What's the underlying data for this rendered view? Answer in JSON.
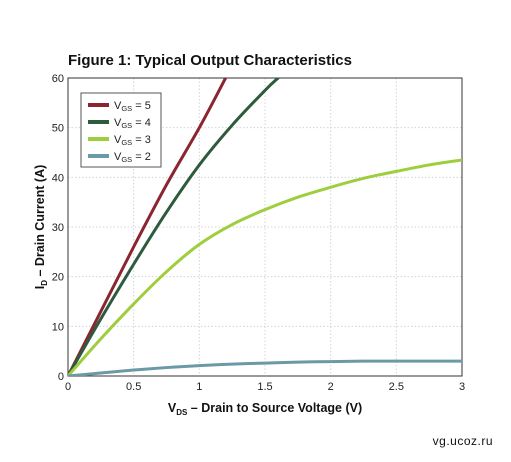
{
  "chart_data": {
    "type": "line",
    "title": "Figure 1: Typical Output Characteristics",
    "xlabel": {
      "main": "V",
      "sub": "DS",
      "rest": " – Drain to Source Voltage (V)"
    },
    "ylabel": {
      "main": "I",
      "sub": "D",
      "rest": " – Drain Current (A)"
    },
    "xlim": [
      0,
      3
    ],
    "ylim": [
      0,
      60
    ],
    "xticks": [
      "0",
      "0.5",
      "1",
      "1.5",
      "2",
      "2.5",
      "3"
    ],
    "yticks": [
      "0",
      "10",
      "20",
      "30",
      "40",
      "50",
      "60"
    ],
    "grid": true,
    "legend_position": "top-left",
    "series": [
      {
        "name": {
          "main": "V",
          "sub": "GS",
          "rest": " = 5"
        },
        "color": "#8b2530",
        "x": [
          0,
          0.25,
          0.5,
          0.75,
          1.0,
          1.2
        ],
        "y": [
          0,
          13,
          26,
          38.5,
          50,
          60
        ]
      },
      {
        "name": {
          "main": "V",
          "sub": "GS",
          "rest": " = 4"
        },
        "color": "#2e5a3e",
        "x": [
          0,
          0.25,
          0.5,
          0.75,
          1.0,
          1.25,
          1.5,
          1.6
        ],
        "y": [
          0,
          11.5,
          22.5,
          33,
          42.5,
          50.5,
          57.5,
          60
        ]
      },
      {
        "name": {
          "main": "V",
          "sub": "GS",
          "rest": " = 3"
        },
        "color": "#9ecd3e",
        "x": [
          0,
          0.25,
          0.5,
          0.75,
          1.0,
          1.25,
          1.5,
          1.75,
          2.0,
          2.25,
          2.5,
          2.75,
          3.0
        ],
        "y": [
          0,
          7.5,
          14.5,
          21,
          26.5,
          30.5,
          33.5,
          36,
          38,
          39.8,
          41.2,
          42.5,
          43.5
        ]
      },
      {
        "name": {
          "main": "V",
          "sub": "GS",
          "rest": " = 2"
        },
        "color": "#6a9aa5",
        "x": [
          0,
          0.25,
          0.5,
          0.75,
          1.0,
          1.25,
          1.5,
          1.75,
          2.0,
          2.25,
          2.5,
          2.75,
          3.0
        ],
        "y": [
          0,
          0.6,
          1.2,
          1.7,
          2.1,
          2.4,
          2.6,
          2.8,
          2.9,
          3.0,
          3.0,
          3.0,
          3.0
        ]
      }
    ]
  },
  "watermark": "vg.ucoz.ru"
}
